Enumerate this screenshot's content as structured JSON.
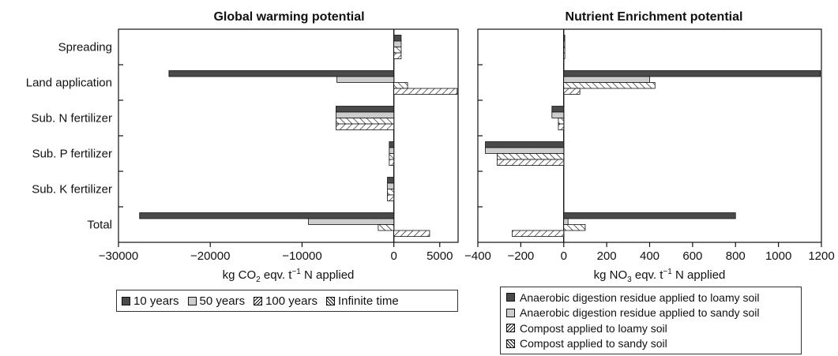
{
  "chart_data": [
    {
      "type": "bar",
      "orientation": "horizontal",
      "title": "Global warming potential",
      "xlabel_prefix": "kg CO",
      "xlabel_sub": "2",
      "xlabel_mid": " eqv. t",
      "xlabel_sup": "−1",
      "xlabel_suffix": " N applied",
      "xlim": [
        -30000,
        7000
      ],
      "ticks": [
        -30000,
        -20000,
        -10000,
        0,
        5000
      ],
      "tick_labels": [
        "−30000",
        "−20000",
        "−10000",
        "0",
        "5000"
      ],
      "categories": [
        "Spreading",
        "Land application",
        "Sub. N fertilizer",
        "Sub. P fertilizer",
        "Sub. K fertilizer",
        "Total"
      ],
      "series": [
        {
          "name": "10 years",
          "values": [
            800,
            -24500,
            -6300,
            -500,
            -700,
            -27700
          ]
        },
        {
          "name": "50 years",
          "values": [
            800,
            -6200,
            -6300,
            -500,
            -700,
            -9300
          ]
        },
        {
          "name": "100 years",
          "values": [
            800,
            1500,
            -6300,
            -500,
            -700,
            -1700
          ]
        },
        {
          "name": "Infinite time",
          "values": [
            800,
            6900,
            -6300,
            -500,
            -700,
            3900
          ]
        }
      ],
      "legend": "bottom"
    },
    {
      "type": "bar",
      "orientation": "horizontal",
      "title": "Nutrient Enrichment potential",
      "xlabel_prefix": "kg NO",
      "xlabel_sub": "3",
      "xlabel_mid": " eqv. t",
      "xlabel_sup": "−1",
      "xlabel_suffix": "  N applied",
      "xlim": [
        -400,
        1200
      ],
      "ticks": [
        -400,
        -200,
        0,
        200,
        400,
        600,
        800,
        1000,
        1200
      ],
      "tick_labels": [
        "−400",
        "−200",
        "0",
        "200",
        "400",
        "600",
        "800",
        "1000",
        "1200"
      ],
      "categories": [
        "Spreading",
        "Land application",
        "Sub. N fertilizer",
        "Sub. P fertilizer",
        "Sub. K fertilizer",
        "Total"
      ],
      "series": [
        {
          "name": "Anaerobic digestion residue applied to loamy soil",
          "values": [
            5,
            1195,
            -55,
            -365,
            0,
            800
          ]
        },
        {
          "name": "Anaerobic digestion residue applied to sandy soil",
          "values": [
            5,
            400,
            -55,
            -365,
            0,
            20
          ]
        },
        {
          "name": "Compost applied to loamy soil",
          "values": [
            5,
            425,
            -25,
            -310,
            0,
            100
          ]
        },
        {
          "name": "Compost applied to sandy soil",
          "values": [
            5,
            75,
            -25,
            -310,
            0,
            -240
          ]
        }
      ],
      "legend": "bottom"
    }
  ],
  "colors": {
    "dark": "#4a4a4a",
    "light": "#cdcdcd",
    "hatch": "#111111"
  }
}
